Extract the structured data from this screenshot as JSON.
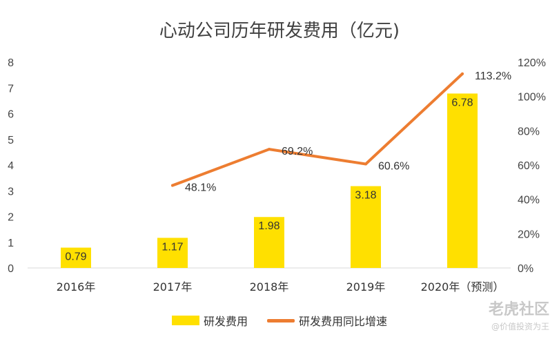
{
  "chart_data": {
    "type": "bar",
    "title": "心动公司历年研发费用（亿元)",
    "categories": [
      "2016年",
      "2017年",
      "2018年",
      "2019年",
      "2020年（预测）"
    ],
    "series": [
      {
        "name": "研发费用",
        "type": "bar",
        "axis": "left",
        "color": "#FFE000",
        "values": [
          0.79,
          1.17,
          1.98,
          3.18,
          6.78
        ],
        "labels": [
          "0.79",
          "1.17",
          "1.98",
          "3.18",
          "6.78"
        ]
      },
      {
        "name": "研发费用同比增速",
        "type": "line",
        "axis": "right",
        "color": "#ED7D31",
        "values": [
          null,
          48.1,
          69.2,
          60.6,
          113.2
        ],
        "labels": [
          null,
          "48.1%",
          "69.2%",
          "60.6%",
          "113.2%"
        ]
      }
    ],
    "y_left": {
      "min": 0,
      "max": 8,
      "ticks": [
        "0",
        "1",
        "2",
        "3",
        "4",
        "5",
        "6",
        "7",
        "8"
      ]
    },
    "y_right": {
      "min": 0,
      "max": 120,
      "ticks": [
        "0%",
        "20%",
        "40%",
        "60%",
        "80%",
        "100%",
        "120%"
      ]
    },
    "grid": false,
    "legend_position": "bottom"
  },
  "watermark": {
    "logo": "老虎社区",
    "sub": "@价值投资为王"
  }
}
